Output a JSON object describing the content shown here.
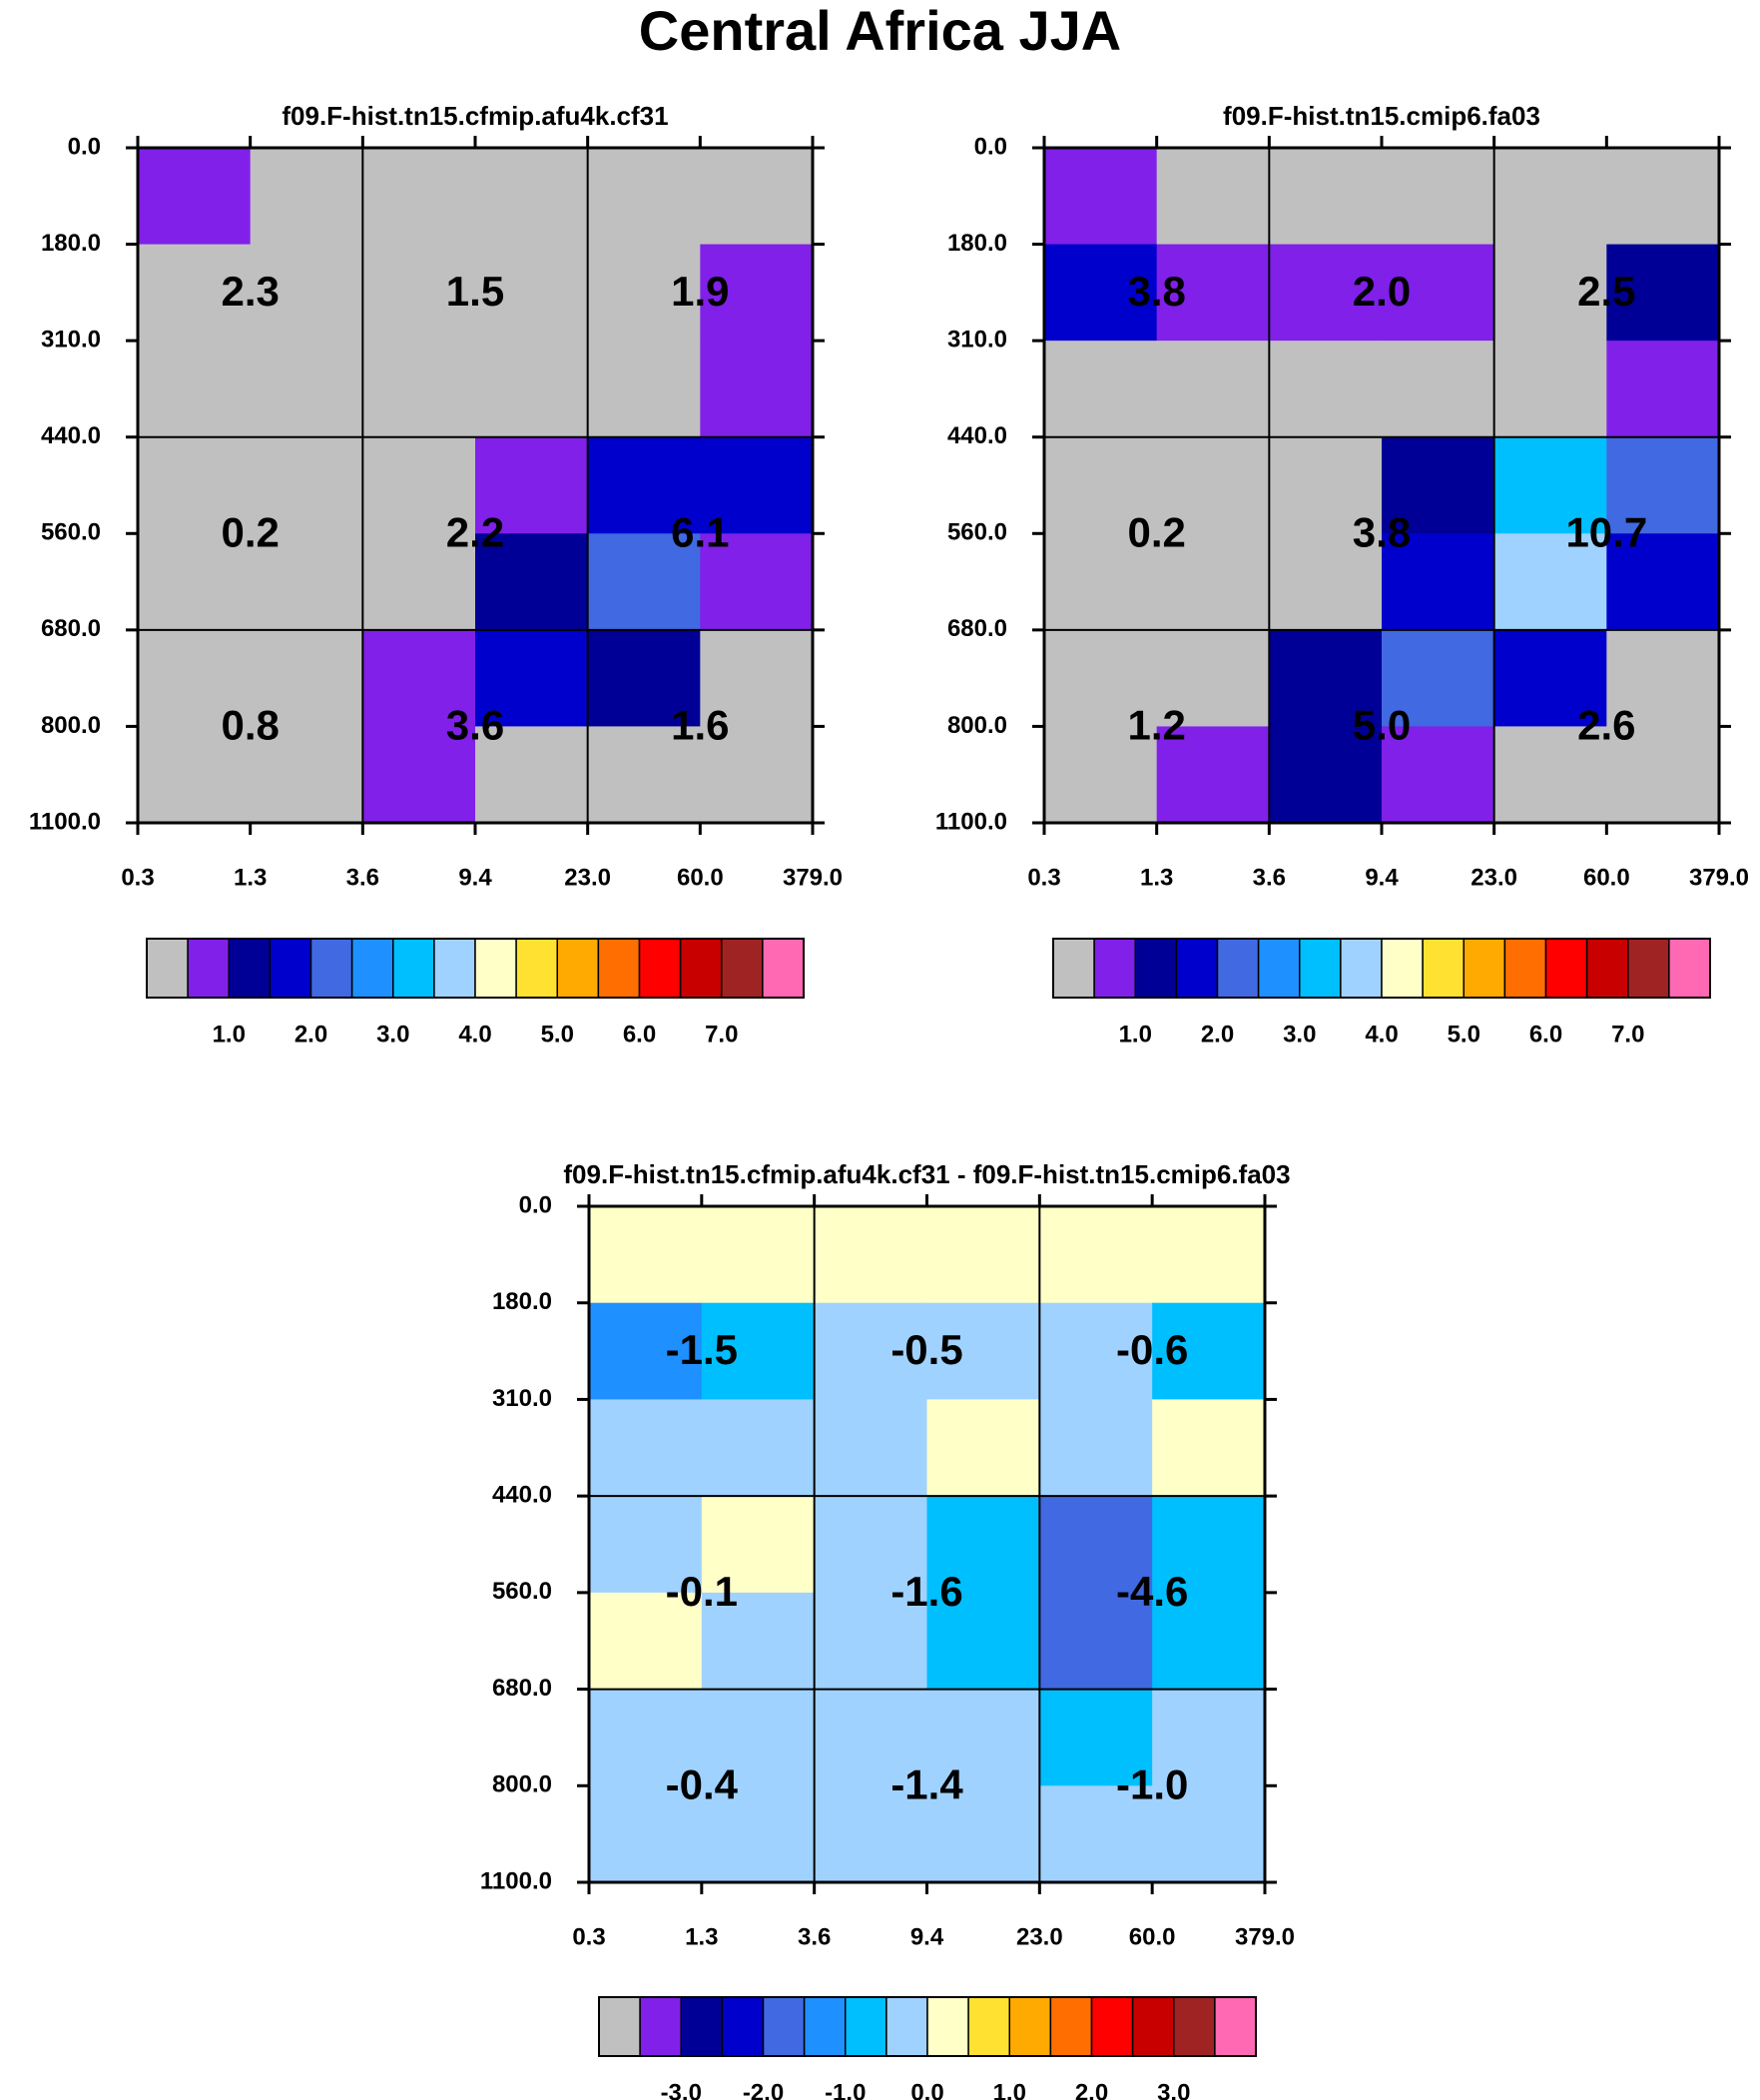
{
  "figure": {
    "title": "Central Africa JJA"
  },
  "palette": [
    "#c0c0c0",
    "#8020e8",
    "#000096",
    "#0000cd",
    "#4169e1",
    "#1e90ff",
    "#00bfff",
    "#a0d2ff",
    "#ffffc8",
    "#ffe132",
    "#ffaa00",
    "#ff6e00",
    "#ff0000",
    "#c80000",
    "#a02323",
    "#ff69b4"
  ],
  "chart_data": [
    {
      "type": "heatmap",
      "title": "f09.F-hist.tn15.cfmip.afu4k.cf31",
      "x_ticks": [
        "0.3",
        "1.3",
        "3.6",
        "9.4",
        "23.0",
        "60.0",
        "379.0"
      ],
      "y_ticks": [
        "0.0",
        "180.0",
        "310.0",
        "440.0",
        "560.0",
        "680.0",
        "800.0",
        "1100.0"
      ],
      "xlabel": "",
      "ylabel": "",
      "cell_colors": [
        [
          1,
          0,
          0,
          0,
          0,
          0
        ],
        [
          0,
          0,
          0,
          0,
          0,
          1
        ],
        [
          0,
          0,
          0,
          0,
          0,
          1
        ],
        [
          0,
          0,
          0,
          1,
          3,
          3
        ],
        [
          0,
          0,
          0,
          2,
          4,
          1
        ],
        [
          0,
          0,
          1,
          3,
          2,
          0
        ],
        [
          0,
          0,
          1,
          0,
          0,
          0
        ]
      ],
      "box_labels": [
        [
          "2.3",
          "1.5",
          "1.9"
        ],
        [
          "0.2",
          "2.2",
          "6.1"
        ],
        [
          "0.8",
          "3.6",
          "1.6"
        ]
      ],
      "colorbar_labels": [
        "1.0",
        "2.0",
        "3.0",
        "4.0",
        "5.0",
        "6.0",
        "7.0"
      ],
      "colorbar_colors": [
        0,
        1,
        2,
        3,
        4,
        5,
        6,
        7,
        8,
        9,
        10,
        11,
        12,
        13,
        14,
        15
      ]
    },
    {
      "type": "heatmap",
      "title": "f09.F-hist.tn15.cmip6.fa03",
      "x_ticks": [
        "0.3",
        "1.3",
        "3.6",
        "9.4",
        "23.0",
        "60.0",
        "379.0"
      ],
      "y_ticks": [
        "0.0",
        "180.0",
        "310.0",
        "440.0",
        "560.0",
        "680.0",
        "800.0",
        "1100.0"
      ],
      "xlabel": "",
      "ylabel": "",
      "cell_colors": [
        [
          1,
          0,
          0,
          0,
          0,
          0
        ],
        [
          3,
          1,
          1,
          1,
          0,
          2
        ],
        [
          0,
          0,
          0,
          0,
          0,
          1
        ],
        [
          0,
          0,
          0,
          2,
          6,
          4
        ],
        [
          0,
          0,
          0,
          3,
          7,
          3
        ],
        [
          0,
          0,
          2,
          4,
          3,
          0
        ],
        [
          0,
          1,
          2,
          1,
          0,
          0
        ]
      ],
      "box_labels": [
        [
          "3.8",
          "2.0",
          "2.5"
        ],
        [
          "0.2",
          "3.8",
          "10.7"
        ],
        [
          "1.2",
          "5.0",
          "2.6"
        ]
      ],
      "colorbar_labels": [
        "1.0",
        "2.0",
        "3.0",
        "4.0",
        "5.0",
        "6.0",
        "7.0"
      ],
      "colorbar_colors": [
        0,
        1,
        2,
        3,
        4,
        5,
        6,
        7,
        8,
        9,
        10,
        11,
        12,
        13,
        14,
        15
      ]
    },
    {
      "type": "heatmap",
      "title": "f09.F-hist.tn15.cfmip.afu4k.cf31 - f09.F-hist.tn15.cmip6.fa03",
      "x_ticks": [
        "0.3",
        "1.3",
        "3.6",
        "9.4",
        "23.0",
        "60.0",
        "379.0"
      ],
      "y_ticks": [
        "0.0",
        "180.0",
        "310.0",
        "440.0",
        "560.0",
        "680.0",
        "800.0",
        "1100.0"
      ],
      "xlabel": "",
      "ylabel": "",
      "cell_colors": [
        [
          8,
          8,
          8,
          8,
          8,
          8
        ],
        [
          5,
          6,
          7,
          7,
          7,
          6
        ],
        [
          7,
          7,
          7,
          8,
          7,
          8
        ],
        [
          7,
          8,
          7,
          6,
          4,
          6
        ],
        [
          8,
          7,
          7,
          6,
          4,
          6
        ],
        [
          7,
          7,
          7,
          7,
          6,
          7
        ],
        [
          7,
          7,
          7,
          7,
          7,
          7
        ]
      ],
      "box_labels": [
        [
          "-1.5",
          "-0.5",
          "-0.6"
        ],
        [
          "-0.1",
          "-1.6",
          "-4.6"
        ],
        [
          "-0.4",
          "-1.4",
          "-1.0"
        ]
      ],
      "colorbar_labels": [
        "-3.0",
        "-2.0",
        "-1.0",
        "0.0",
        "1.0",
        "2.0",
        "3.0"
      ],
      "colorbar_colors": [
        0,
        1,
        2,
        3,
        4,
        5,
        6,
        7,
        8,
        9,
        10,
        11,
        12,
        13,
        14,
        15
      ]
    }
  ]
}
